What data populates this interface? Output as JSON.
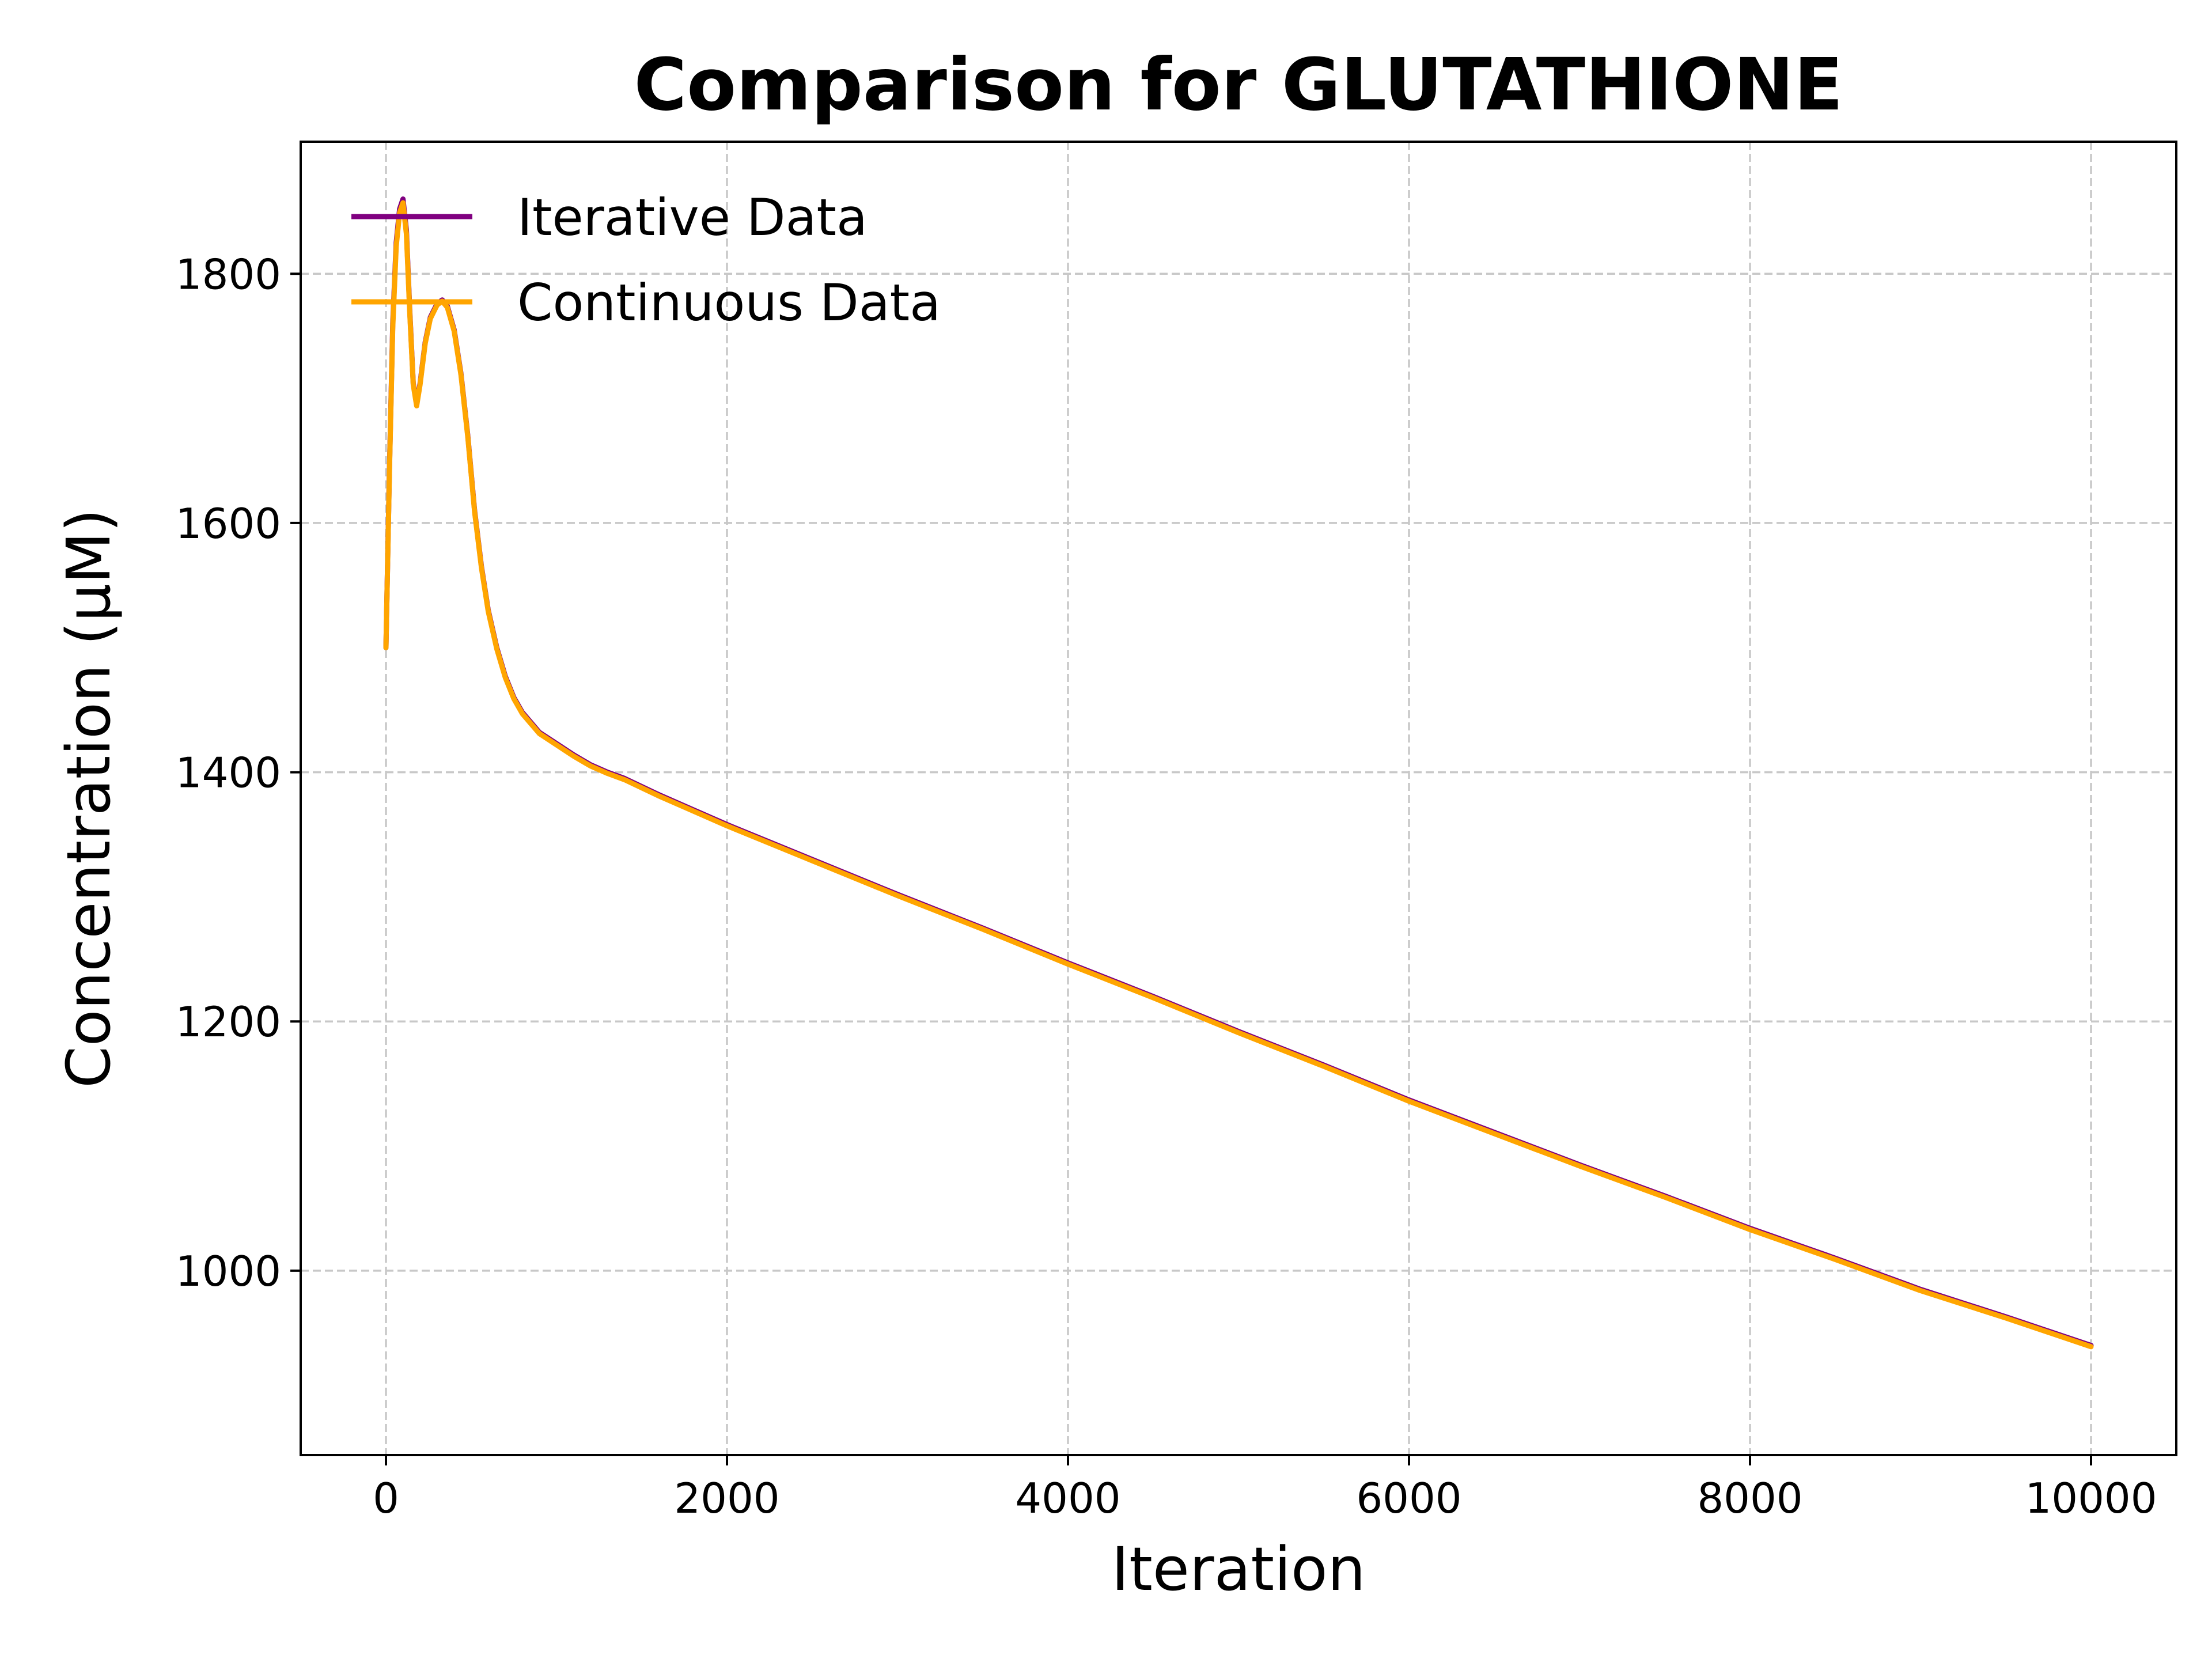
{
  "chart_data": {
    "type": "line",
    "title": "Comparison for GLUTATHIONE",
    "xlabel": "Iteration",
    "ylabel": "Concentration (μM)",
    "xlim": [
      -500,
      10500
    ],
    "ylim": [
      852,
      1906
    ],
    "xticks": [
      0,
      2000,
      4000,
      6000,
      8000,
      10000
    ],
    "xtick_labels": [
      "0",
      "2000",
      "4000",
      "6000",
      "8000",
      "10000"
    ],
    "yticks": [
      1000,
      1200,
      1400,
      1600,
      1800
    ],
    "ytick_labels": [
      "1000",
      "1200",
      "1400",
      "1600",
      "1800"
    ],
    "grid": true,
    "legend_position": "top-left",
    "series": [
      {
        "name": "Iterative Data",
        "color": "#800080",
        "x": [
          0,
          20,
          40,
          60,
          80,
          100,
          120,
          140,
          160,
          180,
          200,
          230,
          260,
          300,
          330,
          360,
          400,
          440,
          480,
          520,
          560,
          600,
          650,
          700,
          750,
          800,
          900,
          1000,
          1100,
          1200,
          1300,
          1400,
          1600,
          1800,
          2000,
          2500,
          3000,
          3500,
          4000,
          4500,
          5000,
          5500,
          6000,
          6500,
          7000,
          7500,
          8000,
          8500,
          9000,
          9500,
          10000
        ],
        "y": [
          1500,
          1640,
          1760,
          1825,
          1852,
          1860,
          1835,
          1770,
          1712,
          1695,
          1712,
          1745,
          1765,
          1776,
          1779,
          1774,
          1755,
          1720,
          1670,
          1610,
          1565,
          1530,
          1500,
          1477,
          1460,
          1448,
          1432,
          1423,
          1414,
          1406,
          1400,
          1395,
          1382,
          1370,
          1358,
          1330,
          1302,
          1275,
          1247,
          1220,
          1192,
          1165,
          1137,
          1111,
          1085,
          1060,
          1034,
          1010,
          985,
          963,
          940
        ]
      },
      {
        "name": "Continuous Data",
        "color": "#FFA500",
        "x": [
          0,
          20,
          40,
          60,
          80,
          100,
          120,
          140,
          160,
          180,
          200,
          230,
          260,
          300,
          330,
          360,
          400,
          440,
          480,
          520,
          560,
          600,
          650,
          700,
          750,
          800,
          900,
          1000,
          1100,
          1200,
          1300,
          1400,
          1600,
          1800,
          2000,
          2500,
          3000,
          3500,
          4000,
          4500,
          5000,
          5500,
          6000,
          6500,
          7000,
          7500,
          8000,
          8500,
          9000,
          9500,
          10000
        ],
        "y": [
          1500,
          1638,
          1757,
          1822,
          1849,
          1857,
          1832,
          1768,
          1711,
          1694,
          1711,
          1744,
          1764,
          1775,
          1778,
          1773,
          1754,
          1719,
          1669,
          1609,
          1564,
          1529,
          1499,
          1476,
          1459,
          1447,
          1431,
          1422,
          1413,
          1405,
          1399,
          1394,
          1381,
          1369,
          1357,
          1329,
          1301,
          1274,
          1246,
          1219,
          1191,
          1164,
          1136,
          1110,
          1084,
          1059,
          1033,
          1009,
          984,
          962,
          939
        ]
      }
    ]
  }
}
